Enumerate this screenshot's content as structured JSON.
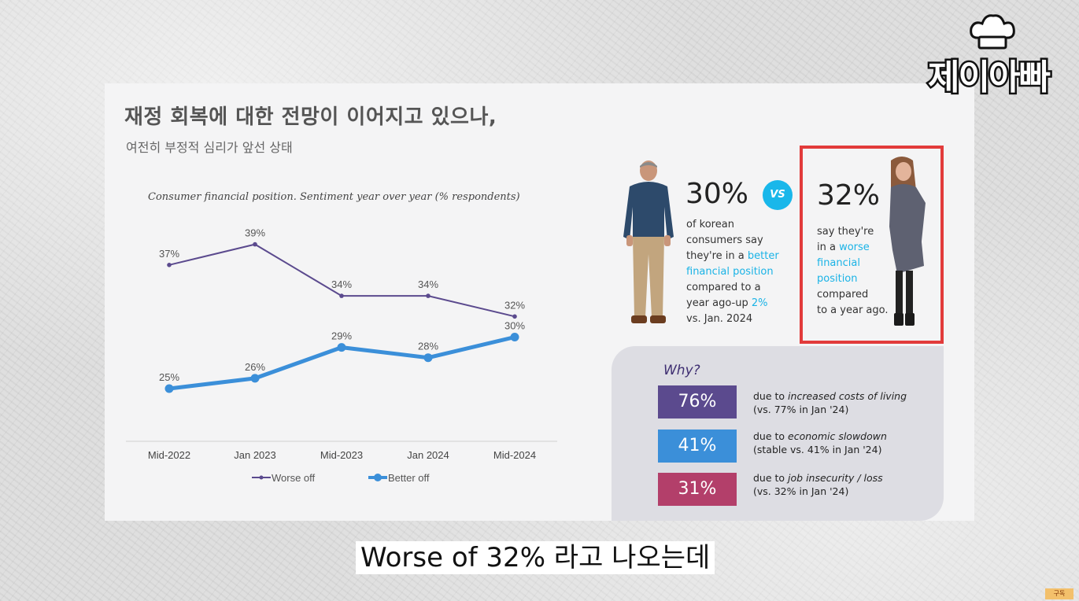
{
  "slide": {
    "title": "재정 회복에 대한 전망이 이어지고 있으나,",
    "subtitle": "여전히 부정적 심리가 앞선 상태"
  },
  "chart_data": {
    "type": "line",
    "title": "Consumer financial position. Sentiment year over year (% respondents)",
    "categories": [
      "Mid-2022",
      "Jan 2023",
      "Mid-2023",
      "Jan 2024",
      "Mid-2024"
    ],
    "series": [
      {
        "name": "Worse off",
        "values": [
          37,
          39,
          34,
          34,
          32
        ],
        "labels": [
          "37%",
          "39%",
          "34%",
          "34%",
          "32%"
        ],
        "color": "#5b4a8e"
      },
      {
        "name": "Better off",
        "values": [
          25,
          26,
          29,
          28,
          30
        ],
        "labels": [
          "25%",
          "26%",
          "29%",
          "28%",
          "30%"
        ],
        "color": "#3b8fd9"
      }
    ],
    "legend_position": "bottom",
    "grid": false
  },
  "comparison": {
    "left": {
      "percent": "30%",
      "lines": [
        {
          "text": "of korean",
          "highlight": false
        },
        {
          "text": "consumers say",
          "highlight": false
        },
        {
          "parts": [
            {
              "text": "they're in a ",
              "highlight": false
            },
            {
              "text": "better",
              "highlight": true
            }
          ]
        },
        {
          "text": "financial position",
          "highlight": true
        },
        {
          "text": "compared to a",
          "highlight": false
        },
        {
          "parts": [
            {
              "text": "year ago-up ",
              "highlight": false
            },
            {
              "text": "2%",
              "highlight": true
            }
          ]
        },
        {
          "text": "vs. Jan. 2024",
          "highlight": false
        }
      ]
    },
    "vs_label": "VS",
    "right": {
      "percent": "32%",
      "lines": [
        {
          "text": "say they're",
          "highlight": false
        },
        {
          "parts": [
            {
              "text": "in a ",
              "highlight": false
            },
            {
              "text": "worse",
              "highlight": true
            }
          ]
        },
        {
          "text": "financial",
          "highlight": true
        },
        {
          "text": "position",
          "highlight": true
        },
        {
          "text": "compared",
          "highlight": false
        },
        {
          "text": "to a year ago.",
          "highlight": false
        }
      ]
    },
    "highlight_color": "#1ab3e6"
  },
  "why": {
    "title": "Why?",
    "items": [
      {
        "percent": "76%",
        "prefix": "due to ",
        "reason": "increased costs of living",
        "note": "(vs. 77% in Jan '24)",
        "color": "#5b4a8e"
      },
      {
        "percent": "41%",
        "prefix": "due to ",
        "reason": "economic slowdown",
        "note": "(stable vs. 41% in Jan '24)",
        "color": "#3b8fd9"
      },
      {
        "percent": "31%",
        "prefix": "due to ",
        "reason": "job insecurity / loss",
        "note": "(vs. 32% in Jan '24)",
        "color": "#b33f6a"
      }
    ]
  },
  "channel": {
    "logo_text": "제이아빠",
    "badge": "구독"
  },
  "subtitle_caption": "Worse of 32% 라고 나오는데"
}
